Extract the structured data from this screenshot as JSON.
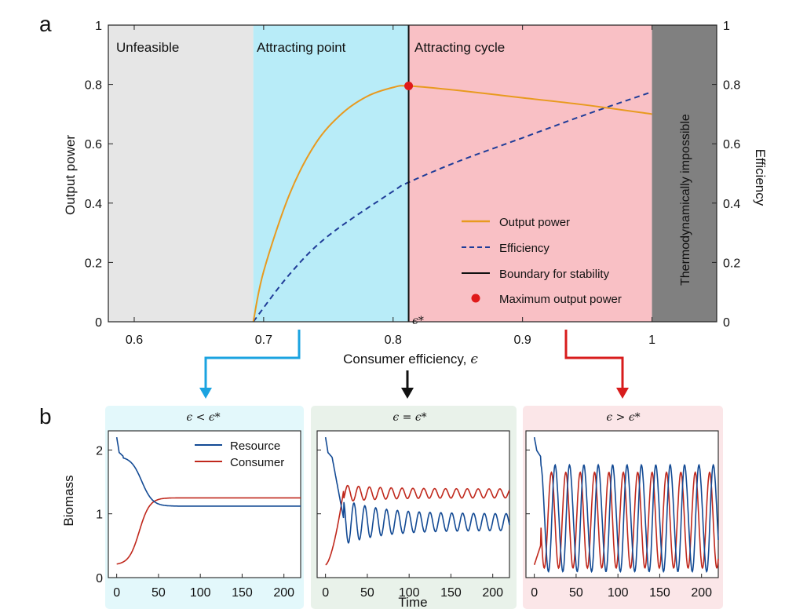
{
  "panel_a": {
    "letter": "a",
    "xlabel": "Consumer efficiency,",
    "xlabel_symbol": "ϵ",
    "ylabel_left": "Output power",
    "ylabel_right": "Efficiency",
    "star_label": "ϵ*",
    "regions": [
      {
        "label": "Unfeasible",
        "from": 0.58,
        "to": 0.692,
        "color": "#e6e6e6"
      },
      {
        "label": "Attracting point",
        "from": 0.692,
        "to": 0.812,
        "color": "#b8ecf8"
      },
      {
        "label": "Attracting cycle",
        "from": 0.812,
        "to": 1.0,
        "color": "#f9c0c5"
      },
      {
        "label": "Thermodynamically impossible",
        "from": 1.0,
        "to": 1.05,
        "color": "#808080"
      }
    ],
    "legend": {
      "output_power": "Output power",
      "efficiency": "Efficiency",
      "boundary": "Boundary for stability",
      "maximum": "Maximum output power"
    },
    "colors": {
      "output_power": "#e89a1f",
      "efficiency": "#1f3c98",
      "boundary": "#111111",
      "maximum": "#e01a1a"
    }
  },
  "panel_b": {
    "letter": "b",
    "ylabel": "Biomass",
    "xlabel": "Time",
    "titles": [
      "ϵ < ϵ*",
      "ϵ = ϵ*",
      "ϵ > ϵ*"
    ],
    "legend": {
      "resource": "Resource",
      "consumer": "Consumer"
    },
    "bg_colors": [
      "#e3f8fb",
      "#e9f2ea",
      "#fbe6e8"
    ],
    "arrow_colors": [
      "#1ba3e0",
      "#111111",
      "#d81c1c"
    ],
    "colors": {
      "resource": "#134a94",
      "consumer": "#c0281c"
    }
  },
  "chart_data": [
    {
      "type": "line",
      "xlabel": "Consumer efficiency, ϵ",
      "ylabel": "Output power",
      "ylabel_right": "Efficiency",
      "xlim": [
        0.58,
        1.05
      ],
      "ylim": [
        0,
        1
      ],
      "xticks": [
        "0.6",
        "0.7",
        "0.8",
        "0.9",
        "1"
      ],
      "yticks": [
        "0",
        "0.2",
        "0.4",
        "0.6",
        "0.8",
        "1"
      ],
      "series": [
        {
          "name": "Output power",
          "x": [
            0.692,
            0.7,
            0.72,
            0.74,
            0.76,
            0.78,
            0.8,
            0.812,
            0.85,
            0.9,
            0.95,
            1.0
          ],
          "y": [
            0.0,
            0.17,
            0.43,
            0.6,
            0.7,
            0.76,
            0.79,
            0.795,
            0.78,
            0.755,
            0.73,
            0.7
          ]
        },
        {
          "name": "Efficiency",
          "x": [
            0.692,
            0.72,
            0.75,
            0.8,
            0.812,
            0.85,
            0.9,
            0.95,
            1.0
          ],
          "y": [
            0.0,
            0.16,
            0.29,
            0.44,
            0.47,
            0.54,
            0.62,
            0.7,
            0.775
          ]
        }
      ],
      "boundary_x": 0.812,
      "maximum_point": {
        "x": 0.812,
        "y": 0.795
      },
      "legend_position": "lower-right"
    },
    {
      "type": "line",
      "title": "ϵ < ϵ*",
      "ylabel": "Biomass",
      "xlim": [
        -10,
        220
      ],
      "ylim": [
        0,
        2.3
      ],
      "xticks": [
        "0",
        "50",
        "100",
        "150",
        "200"
      ],
      "yticks": [
        "0",
        "1",
        "2"
      ],
      "series": [
        {
          "name": "Resource",
          "x": [
            0,
            3,
            8,
            15,
            25,
            35,
            45,
            52,
            60,
            100,
            220
          ],
          "y": [
            2.2,
            1.95,
            1.9,
            1.8,
            1.6,
            1.38,
            1.17,
            1.1,
            1.12,
            1.12,
            1.12
          ]
        },
        {
          "name": "Consumer",
          "x": [
            0,
            10,
            20,
            30,
            40,
            48,
            55,
            100,
            220
          ],
          "y": [
            0.2,
            0.32,
            0.55,
            0.85,
            1.12,
            1.25,
            1.25,
            1.25,
            1.25
          ]
        }
      ],
      "legend_position": "top-right"
    },
    {
      "type": "line",
      "title": "ϵ = ϵ*",
      "xlabel": "Time",
      "xlim": [
        -10,
        220
      ],
      "ylim": [
        0,
        2.3
      ],
      "xticks": [
        "0",
        "50",
        "100",
        "150",
        "200"
      ],
      "series": [
        {
          "name": "Resource",
          "note": "damped oscillation",
          "mean": 0.87,
          "period": 13,
          "amplitude_start": 0.3,
          "amplitude_end": 0.13
        },
        {
          "name": "Consumer",
          "note": "damped oscillation",
          "mean": 1.32,
          "period": 13,
          "amplitude_start": 0.12,
          "amplitude_end": 0.07
        }
      ]
    },
    {
      "type": "line",
      "title": "ϵ > ϵ*",
      "xlim": [
        -10,
        220
      ],
      "ylim": [
        0,
        2.3
      ],
      "xticks": [
        "0",
        "50",
        "100",
        "150",
        "200"
      ],
      "series": [
        {
          "name": "Resource",
          "note": "sustained oscillation",
          "min": 0.1,
          "max": 1.75,
          "period": 17
        },
        {
          "name": "Consumer",
          "note": "sustained oscillation",
          "min": 0.15,
          "max": 1.65,
          "period": 17
        }
      ]
    }
  ]
}
